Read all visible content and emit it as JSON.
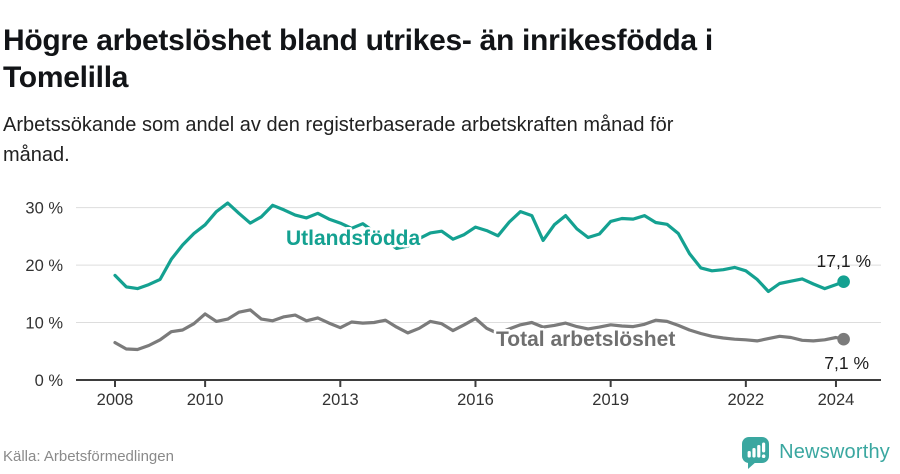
{
  "title": "Högre arbetslöshet bland utrikes- än inrikesfödda i Tomelilla",
  "subtitle": "Arbetssökande som andel av den registerbaserade arbetskraften månad för månad.",
  "source": "Källa: Arbetsförmedlingen",
  "brand": {
    "name": "Newsworthy",
    "icon": "newsworthy-chart-bubble-icon"
  },
  "colors": {
    "series_utland": "#14a191",
    "series_total": "#7b7b7b",
    "label_total": "#6f6f6f",
    "logo": "#3aa7a0",
    "grid": "#dddddd",
    "axis": "#3d3d3d",
    "end_label": "#1c1c1c",
    "tick_label": "#333333",
    "title_text": "#121417",
    "source_text": "#8a8a8a"
  },
  "chart_data": {
    "type": "line",
    "title": "Högre arbetslöshet bland utrikes- än inrikesfödda i Tomelilla",
    "xlabel": "",
    "ylabel": "",
    "x_unit": "year (monthly series)",
    "y_unit": "%",
    "xlim": [
      2007.1,
      2025.0
    ],
    "ylim": [
      0,
      33
    ],
    "grid": "horizontal",
    "legend_position": "inline-labels",
    "x_ticks": [
      2008,
      2010,
      2013,
      2016,
      2019,
      2022,
      2024
    ],
    "x_tick_labels": [
      "2008",
      "2010",
      "2013",
      "2016",
      "2019",
      "2022",
      "2024"
    ],
    "y_ticks": [
      0,
      10,
      20,
      30
    ],
    "y_tick_labels": [
      "0 %",
      "10 %",
      "20 %",
      "30 %"
    ],
    "x": [
      2008,
      2008.25,
      2008.5,
      2008.75,
      2009,
      2009.25,
      2009.5,
      2009.75,
      2010,
      2010.25,
      2010.5,
      2010.75,
      2011,
      2011.25,
      2011.5,
      2011.75,
      2012,
      2012.25,
      2012.5,
      2012.75,
      2013,
      2013.25,
      2013.5,
      2013.75,
      2014,
      2014.25,
      2014.5,
      2014.75,
      2015,
      2015.25,
      2015.5,
      2015.75,
      2016,
      2016.25,
      2016.5,
      2016.75,
      2017,
      2017.25,
      2017.5,
      2017.75,
      2018,
      2018.25,
      2018.5,
      2018.75,
      2019,
      2019.25,
      2019.5,
      2019.75,
      2020,
      2020.25,
      2020.5,
      2020.75,
      2021,
      2021.25,
      2021.5,
      2021.75,
      2022,
      2022.25,
      2022.5,
      2022.75,
      2023,
      2023.25,
      2023.5,
      2023.75,
      2024,
      2024.17
    ],
    "series": [
      {
        "id": "utlandsfodda",
        "name": "Utlandsfödda",
        "color": "#14a191",
        "label_color": "#14a191",
        "end_label": "17,1 %",
        "end_value": 17.1,
        "values": [
          18.2,
          16.2,
          15.9,
          16.6,
          17.5,
          21.0,
          23.5,
          25.5,
          27.0,
          29.3,
          30.8,
          29.0,
          27.3,
          28.4,
          30.4,
          29.6,
          28.7,
          28.2,
          29.0,
          28.0,
          27.3,
          26.4,
          27.2,
          25.8,
          24.3,
          22.9,
          23.3,
          24.6,
          25.6,
          25.9,
          24.5,
          25.3,
          26.6,
          26.0,
          25.1,
          27.5,
          29.3,
          28.6,
          24.3,
          27.0,
          28.6,
          26.3,
          24.8,
          25.4,
          27.6,
          28.1,
          28.0,
          28.6,
          27.4,
          27.1,
          25.5,
          22.0,
          19.5,
          19.0,
          19.2,
          19.6,
          19.0,
          17.5,
          15.4,
          16.8,
          17.2,
          17.6,
          16.7,
          15.9,
          16.6,
          17.1
        ]
      },
      {
        "id": "total",
        "name": "Total arbetslöshet",
        "color": "#7b7b7b",
        "label_color": "#6f6f6f",
        "end_label": "7,1 %",
        "end_value": 7.1,
        "values": [
          6.5,
          5.4,
          5.3,
          6.0,
          7.0,
          8.4,
          8.7,
          9.8,
          11.5,
          10.2,
          10.6,
          11.8,
          12.2,
          10.6,
          10.3,
          11.0,
          11.3,
          10.3,
          10.8,
          9.9,
          9.1,
          10.1,
          9.9,
          10.0,
          10.4,
          9.2,
          8.2,
          9.0,
          10.2,
          9.8,
          8.6,
          9.6,
          10.7,
          9.0,
          8.1,
          8.9,
          9.6,
          10.0,
          9.2,
          9.5,
          9.9,
          9.3,
          8.9,
          9.2,
          9.6,
          9.4,
          9.3,
          9.7,
          10.4,
          10.2,
          9.5,
          8.7,
          8.1,
          7.6,
          7.3,
          7.1,
          7.0,
          6.8,
          7.2,
          7.6,
          7.4,
          6.9,
          6.8,
          7.0,
          7.4,
          7.1
        ]
      }
    ]
  }
}
